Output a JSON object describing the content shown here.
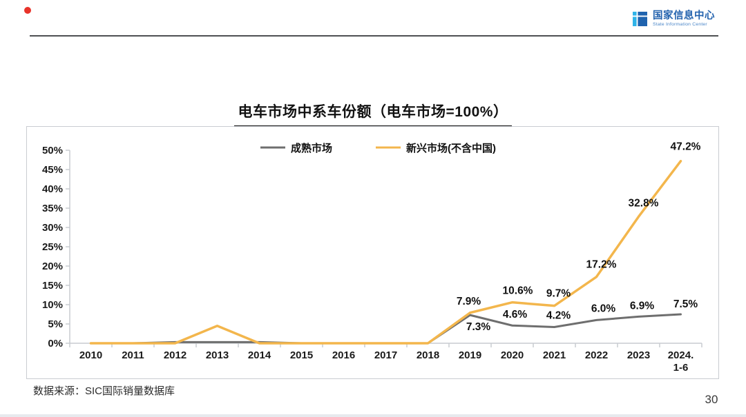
{
  "header": {
    "logo": {
      "name_cn": "国家信息中心",
      "name_en": "State Information Center",
      "brand_blue": "#2463ae",
      "brand_cyan": "#2fb3e8"
    }
  },
  "footer": {
    "source": "数据来源：SIC国际销量数据库",
    "page_number": "30"
  },
  "chart_data": {
    "type": "line",
    "title": "电车市场中系车份额（电车市场=100%）",
    "categories": [
      "2010",
      "2011",
      "2012",
      "2013",
      "2014",
      "2015",
      "2016",
      "2017",
      "2018",
      "2019",
      "2020",
      "2021",
      "2022",
      "2023",
      "2024.\n1-6"
    ],
    "series": [
      {
        "name": "成熟市场",
        "color": "#6e6e6e",
        "stroke_width": 3,
        "values": [
          0,
          0,
          0.3,
          0.3,
          0.3,
          0,
          0,
          0,
          0,
          7.3,
          4.6,
          4.2,
          6.0,
          6.9,
          7.5
        ],
        "labels": [
          null,
          null,
          null,
          null,
          null,
          null,
          null,
          null,
          null,
          {
            "t": "7.3%",
            "dx": 12,
            "dy": 22
          },
          {
            "t": "4.6%",
            "dx": 4,
            "dy": -11
          },
          {
            "t": "4.2%",
            "dx": 6,
            "dy": -12
          },
          {
            "t": "6.0%",
            "dx": 10,
            "dy": -12
          },
          {
            "t": "6.9%",
            "dx": 5,
            "dy": -11
          },
          {
            "t": "7.5%",
            "dx": 7,
            "dy": -10
          }
        ]
      },
      {
        "name": "新兴市场(不含中国)",
        "color": "#f3b64c",
        "stroke_width": 3.5,
        "values": [
          0,
          0,
          0,
          4.5,
          0,
          0,
          0,
          0,
          0,
          7.9,
          10.6,
          9.7,
          17.2,
          32.8,
          47.2
        ],
        "labels": [
          null,
          null,
          null,
          null,
          null,
          null,
          null,
          null,
          null,
          {
            "t": "7.9%",
            "dx": -2,
            "dy": -12
          },
          {
            "t": "10.6%",
            "dx": 8,
            "dy": -12
          },
          {
            "t": "9.7%",
            "dx": 6,
            "dy": -13
          },
          {
            "t": "17.2%",
            "dx": 7,
            "dy": -13
          },
          {
            "t": "32.8%",
            "dx": 7,
            "dy": -15
          },
          {
            "t": "47.2%",
            "dx": 7,
            "dy": -16
          }
        ]
      }
    ],
    "ylim": [
      0,
      50
    ],
    "ytick_step": 5,
    "ytick_suffix": "%",
    "xlabel": "",
    "ylabel": "",
    "legend_position": "top-center",
    "grid": false,
    "axis_color": "#c9ccd1",
    "label_color": "#1a1a1a"
  }
}
